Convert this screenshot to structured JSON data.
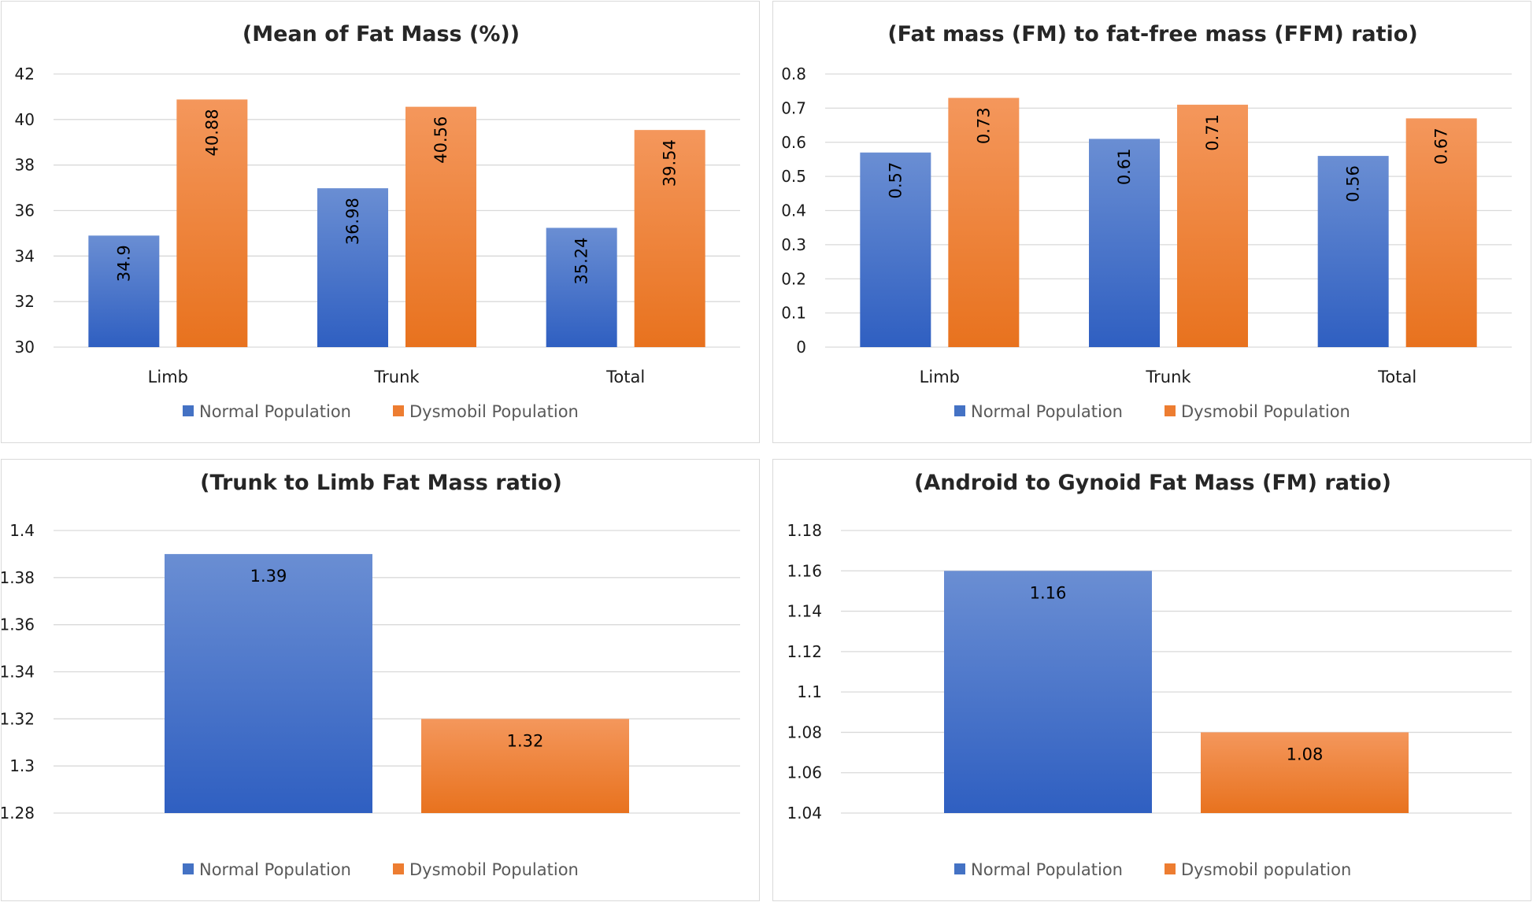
{
  "colors": {
    "normal": "#4472C4",
    "dysmobil": "#ED7D31"
  },
  "chart_data": [
    {
      "type": "bar",
      "title": "(Mean of Fat Mass (%))",
      "categories": [
        "Limb",
        "Trunk",
        "Total"
      ],
      "series": [
        {
          "name": "Normal Population",
          "values": [
            34.9,
            36.98,
            35.24
          ],
          "labels": [
            "34.9",
            "36.98",
            "35.24"
          ]
        },
        {
          "name": "Dysmobil Population",
          "values": [
            40.88,
            40.56,
            39.54
          ],
          "labels": [
            "40.88",
            "40.56",
            "39.54"
          ]
        }
      ],
      "ylim": [
        30,
        42
      ],
      "yticks": [
        "30",
        "32",
        "34",
        "36",
        "38",
        "40",
        "42"
      ],
      "xlabel": "",
      "ylabel": "",
      "label_rotation": "vertical",
      "legend": "bottom",
      "grid": true
    },
    {
      "type": "bar",
      "title": "(Fat mass (FM) to fat-free mass (FFM) ratio)",
      "categories": [
        "Limb",
        "Trunk",
        "Total"
      ],
      "series": [
        {
          "name": "Normal Population",
          "values": [
            0.57,
            0.61,
            0.56
          ],
          "labels": [
            "0.57",
            "0.61",
            "0.56"
          ]
        },
        {
          "name": "Dysmobil Population",
          "values": [
            0.73,
            0.71,
            0.67
          ],
          "labels": [
            "0.73",
            "0.71",
            "0.67"
          ]
        }
      ],
      "ylim": [
        0,
        0.8
      ],
      "yticks": [
        "0",
        "0.1",
        "0.2",
        "0.3",
        "0.4",
        "0.5",
        "0.6",
        "0.7",
        "0.8"
      ],
      "xlabel": "",
      "ylabel": "",
      "label_rotation": "vertical",
      "legend": "bottom",
      "grid": true
    },
    {
      "type": "bar",
      "title": "(Trunk to Limb Fat Mass ratio)",
      "categories": [
        ""
      ],
      "series": [
        {
          "name": "Normal Population",
          "values": [
            1.39
          ],
          "labels": [
            "1.39"
          ]
        },
        {
          "name": "Dysmobil Population",
          "values": [
            1.32
          ],
          "labels": [
            "1.32"
          ]
        }
      ],
      "ylim": [
        1.28,
        1.4
      ],
      "yticks": [
        "1.28",
        "1.3",
        "1.32",
        "1.34",
        "1.36",
        "1.38",
        "1.4"
      ],
      "xlabel": "",
      "ylabel": "",
      "label_rotation": "horizontal",
      "legend": "bottom",
      "grid": true
    },
    {
      "type": "bar",
      "title": "(Android to Gynoid Fat Mass (FM) ratio)",
      "categories": [
        ""
      ],
      "series": [
        {
          "name": "Normal Population",
          "values": [
            1.16
          ],
          "labels": [
            "1.16"
          ]
        },
        {
          "name": "Dysmobil population",
          "values": [
            1.08
          ],
          "labels": [
            "1.08"
          ]
        }
      ],
      "ylim": [
        1.04,
        1.18
      ],
      "yticks": [
        "1.04",
        "1.06",
        "1.08",
        "1.1",
        "1.12",
        "1.14",
        "1.16",
        "1.18"
      ],
      "xlabel": "",
      "ylabel": "",
      "label_rotation": "horizontal",
      "legend": "bottom",
      "grid": true
    }
  ]
}
